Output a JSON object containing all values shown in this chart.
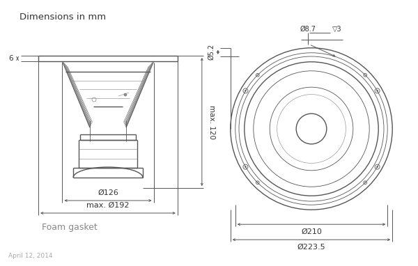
{
  "title": "Dimensions in mm",
  "subtitle": "April 12, 2014",
  "bg_color": "#ffffff",
  "line_color": "#555555",
  "dim_color": "#555555",
  "text_color": "#333333",
  "gray_color": "#888888",
  "dims": {
    "d126": "Ø126",
    "d192": "max. Ø192",
    "max120": "max. 120",
    "d6": "6",
    "d8p7": "Ø8.7",
    "d3": "▽3",
    "d5p2": "Ø5.2",
    "d210": "Ø210",
    "d223p5": "Ø223.5",
    "foam": "Foam gasket"
  }
}
